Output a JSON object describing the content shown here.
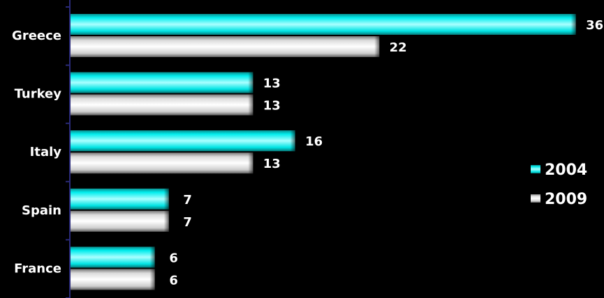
{
  "chart_data": {
    "type": "bar",
    "orientation": "horizontal",
    "categories": [
      "Greece",
      "Turkey",
      "Italy",
      "Spain",
      "France"
    ],
    "series": [
      {
        "name": "2004",
        "values": [
          36,
          13,
          16,
          7,
          6
        ],
        "color": "#00d9d9"
      },
      {
        "name": "2009",
        "values": [
          22,
          13,
          13,
          7,
          6
        ],
        "color": "#d9d9d9"
      }
    ],
    "xlim": [
      0,
      36
    ],
    "grid": false,
    "legend_position": "right",
    "background": "#000000",
    "text_color": "#ffffff"
  }
}
